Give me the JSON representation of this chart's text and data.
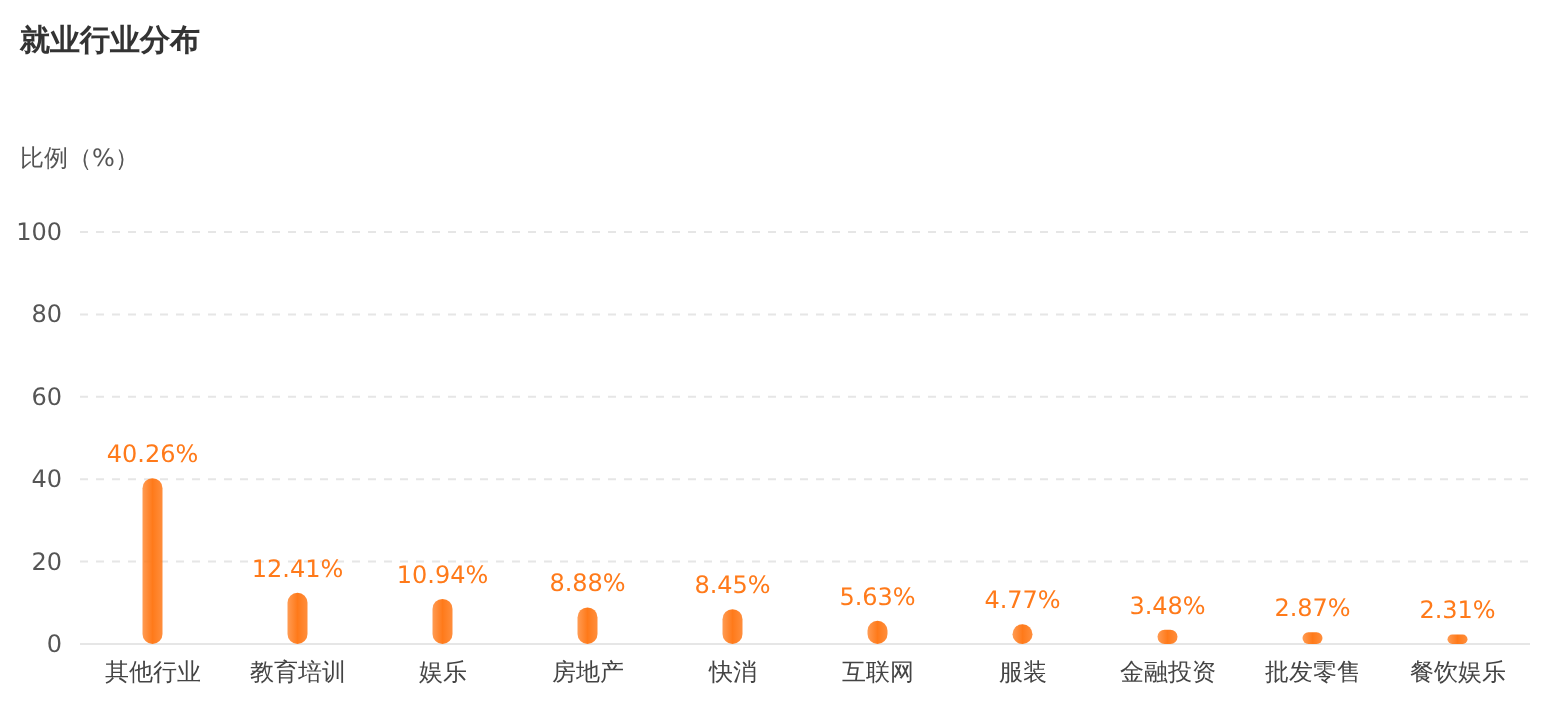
{
  "chart_data": {
    "type": "bar",
    "title": "就业行业分布",
    "ylabel": "比例（%）",
    "categories": [
      "其他行业",
      "教育培训",
      "娱乐",
      "房地产",
      "快消",
      "互联网",
      "服装",
      "金融投资",
      "批发零售",
      "餐饮娱乐"
    ],
    "values": [
      40.26,
      12.41,
      10.94,
      8.88,
      8.45,
      5.63,
      4.77,
      3.48,
      2.87,
      2.31
    ],
    "value_labels": [
      "40.26%",
      "12.41%",
      "10.94%",
      "8.88%",
      "8.45%",
      "5.63%",
      "4.77%",
      "3.48%",
      "2.87%",
      "2.31%"
    ],
    "color": "#ff7a1a",
    "ylim": [
      0,
      100
    ],
    "yticks": [
      0,
      20,
      40,
      60,
      80,
      100
    ],
    "grid": "y"
  }
}
